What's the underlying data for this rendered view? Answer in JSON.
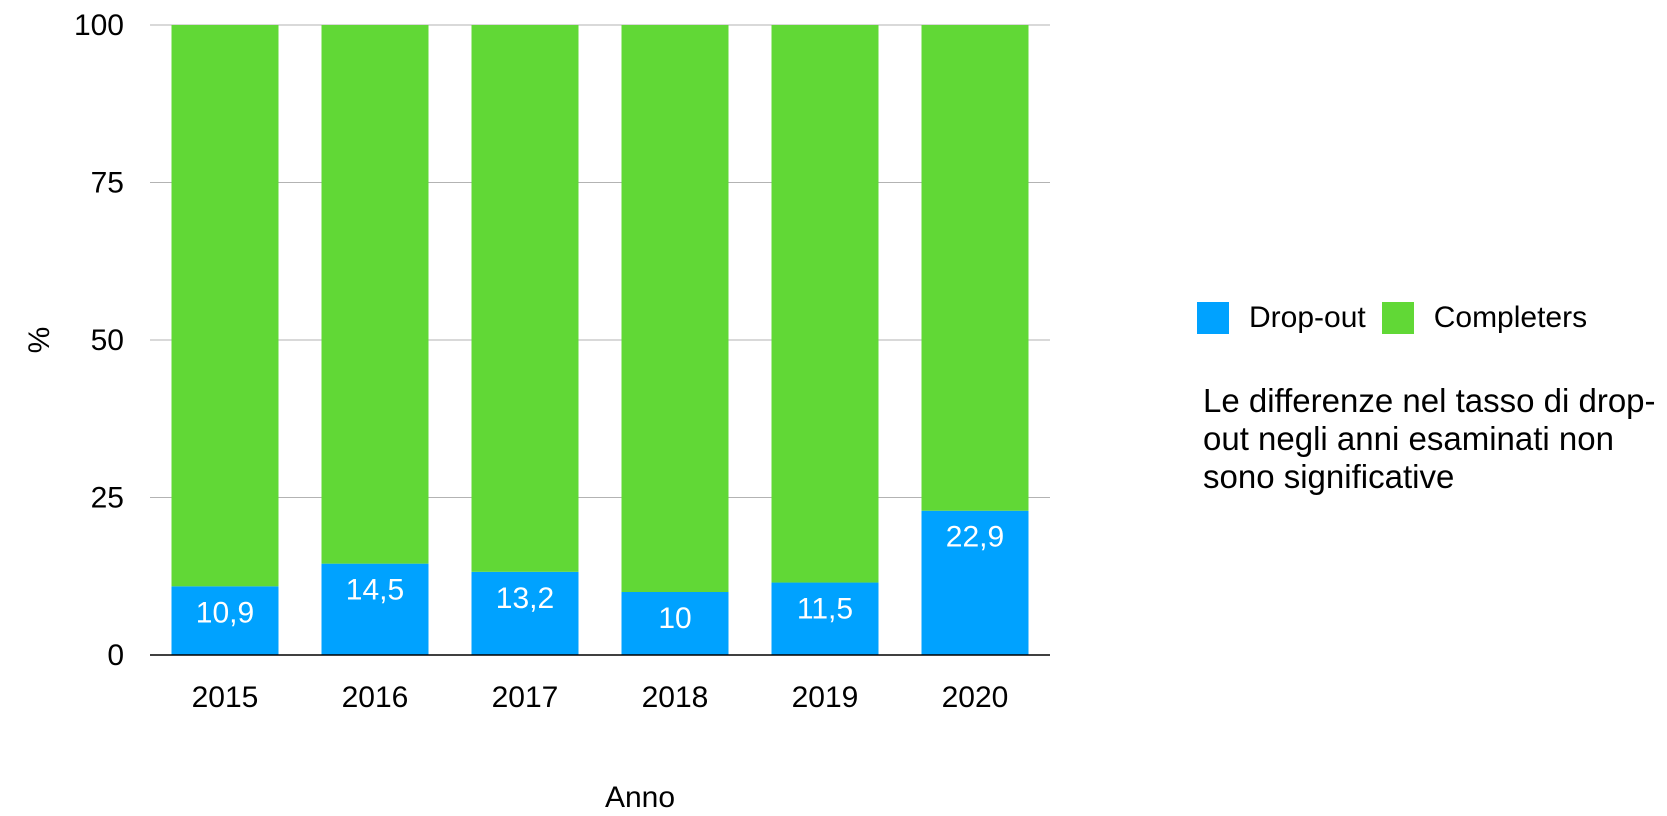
{
  "chart_data": {
    "type": "bar",
    "stacked": true,
    "categories": [
      "2015",
      "2016",
      "2017",
      "2018",
      "2019",
      "2020"
    ],
    "series": [
      {
        "name": "Drop-out",
        "color": "#00A2FF",
        "values": [
          10.9,
          14.5,
          13.2,
          10,
          11.5,
          22.9
        ],
        "labels": [
          "10,9",
          "14,5",
          "13,2",
          "10",
          "11,5",
          "22,9"
        ]
      },
      {
        "name": "Completers",
        "color": "#61D836",
        "values": [
          89.1,
          85.5,
          86.8,
          90,
          88.5,
          77.1
        ]
      }
    ],
    "xlabel": "Anno",
    "ylabel": "%",
    "ylim": [
      0,
      100
    ],
    "yticks": [
      0,
      25,
      50,
      75,
      100
    ],
    "grid": true,
    "legend_position": "right"
  },
  "annotation": "Le differenze nel tasso di drop-out negli anni esaminati non sono significative"
}
